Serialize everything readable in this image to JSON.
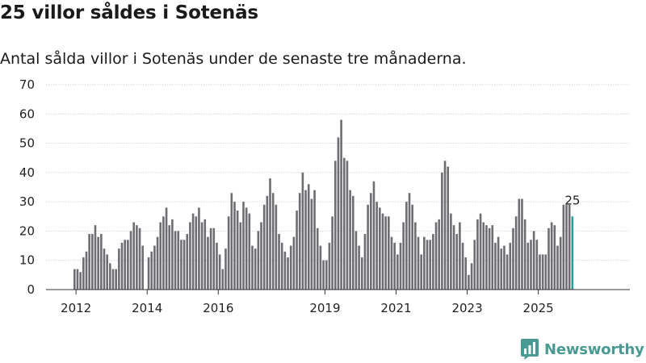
{
  "title": "25 villor såldes i Sotenäs",
  "subtitle": "Antal sålda villor i Sotenäs under de senaste tre månaderna.",
  "brand": {
    "name": "Newsworthy",
    "color": "#4a9a94"
  },
  "chart_data": {
    "type": "bar",
    "series_name": "Antal sålda villor (rullande tre månader)",
    "ylim": [
      0,
      70
    ],
    "y_ticks": [
      0,
      10,
      20,
      30,
      40,
      50,
      60,
      70
    ],
    "x_ticks": [
      {
        "label": "2012",
        "index": 1
      },
      {
        "label": "2014",
        "index": 25
      },
      {
        "label": "2016",
        "index": 49
      },
      {
        "label": "2019",
        "index": 85
      },
      {
        "label": "2021",
        "index": 109
      },
      {
        "label": "2023",
        "index": 133
      },
      {
        "label": "2025",
        "index": 157
      }
    ],
    "bar_color": "#6e6d72",
    "highlight_color": "#2a9c96",
    "highlight_label": "25",
    "values": [
      7,
      7,
      6,
      11,
      13,
      19,
      19,
      22,
      18,
      19,
      14,
      12,
      9,
      7,
      7,
      14,
      16,
      17,
      17,
      20,
      23,
      22,
      21,
      15,
      0,
      11,
      13,
      15,
      18,
      23,
      25,
      28,
      22,
      24,
      20,
      20,
      17,
      17,
      19,
      23,
      26,
      25,
      28,
      23,
      24,
      18,
      21,
      21,
      16,
      12,
      7,
      14,
      25,
      33,
      30,
      27,
      23,
      30,
      28,
      26,
      15,
      14,
      20,
      23,
      29,
      32,
      38,
      33,
      29,
      19,
      16,
      13,
      11,
      15,
      18,
      27,
      33,
      40,
      34,
      36,
      31,
      34,
      21,
      15,
      10,
      10,
      16,
      25,
      44,
      52,
      58,
      45,
      44,
      34,
      32,
      20,
      15,
      11,
      19,
      29,
      33,
      37,
      30,
      28,
      26,
      25,
      25,
      18,
      16,
      12,
      16,
      23,
      30,
      33,
      29,
      23,
      18,
      12,
      18,
      17,
      17,
      19,
      23,
      24,
      40,
      44,
      42,
      26,
      22,
      19,
      23,
      16,
      11,
      5,
      9,
      17,
      24,
      26,
      23,
      22,
      21,
      22,
      16,
      18,
      14,
      15,
      12,
      16,
      21,
      25,
      31,
      31,
      24,
      16,
      17,
      20,
      17,
      12,
      12,
      12,
      21,
      23,
      22,
      15,
      18,
      29,
      29,
      29,
      25
    ]
  }
}
